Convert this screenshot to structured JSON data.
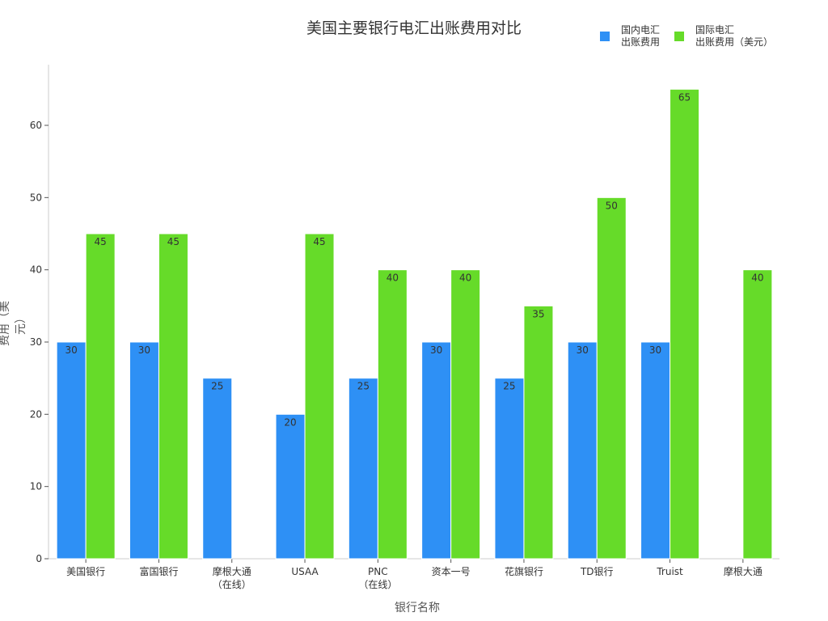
{
  "chart_data": {
    "type": "bar",
    "title": "美国主要银行电汇出账费用对比",
    "xlabel": "银行名称",
    "ylabel": "费用（美元）",
    "categories": [
      "美国银行",
      "富国银行",
      "摩根大通\n（在线）",
      "USAA",
      "PNC\n（在线）",
      "资本一号",
      "花旗银行",
      "TD银行",
      "Truist",
      "摩根大通"
    ],
    "series": [
      {
        "name": "国内电汇\n出账费用",
        "color": "#2e90f5",
        "values": [
          30,
          30,
          25,
          20,
          25,
          30,
          25,
          30,
          30,
          null
        ]
      },
      {
        "name": "国际电汇\n出账费用（美元）",
        "color": "#66db29",
        "values": [
          45,
          45,
          null,
          45,
          40,
          40,
          35,
          50,
          65,
          40
        ]
      }
    ],
    "yticks": [
      0,
      10,
      20,
      30,
      40,
      50,
      60
    ],
    "ylim": [
      0,
      68
    ],
    "grid": false,
    "legend": "top-right"
  }
}
